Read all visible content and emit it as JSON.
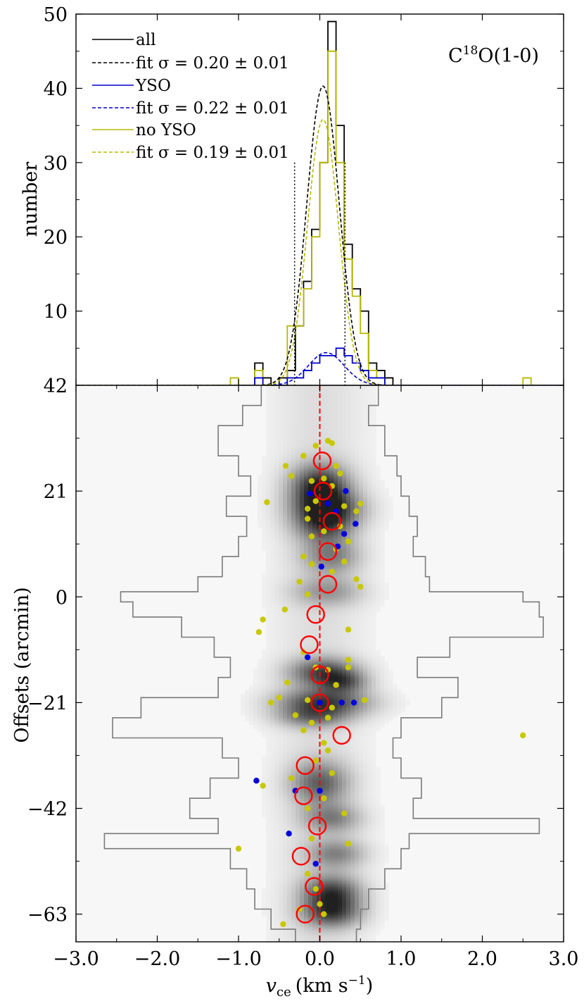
{
  "chart_data": [
    {
      "type": "line",
      "panel": "histogram",
      "annotation": "C18O(1-0)",
      "annotation_main": "C",
      "annotation_sup": "18",
      "annotation_rest": "O(1-0)",
      "ylabel": "number",
      "xlim": [
        -3.0,
        3.0
      ],
      "ylim": [
        0,
        50
      ],
      "yticks": [
        10,
        20,
        30,
        40,
        50
      ],
      "ytick_labels": [
        "10",
        "20",
        "30",
        "40",
        "50"
      ],
      "vertical_markers": [
        -0.31,
        0.31
      ],
      "legend_position": "upper left",
      "colors": {
        "all": "#000000",
        "yso": "#0000cc",
        "noyso": "#b8b800"
      },
      "legend": [
        {
          "label": "all",
          "style": "solid",
          "color": "#000000"
        },
        {
          "label": "fit σ = 0.20 ± 0.01",
          "style": "dashed",
          "color": "#000000"
        },
        {
          "label": "YSO",
          "style": "solid",
          "color": "#0000cc"
        },
        {
          "label": "fit σ = 0.22 ± 0.01",
          "style": "dashed",
          "color": "#0000cc"
        },
        {
          "label": "no YSO",
          "style": "solid",
          "color": "#b8b800"
        },
        {
          "label": "fit σ = 0.19 ± 0.01",
          "style": "dashed",
          "color": "#b8b800"
        }
      ],
      "bin_width": 0.1,
      "series": [
        {
          "name": "all",
          "type": "step",
          "color": "#000000",
          "bin_start": -0.8,
          "values": [
            3,
            1,
            0,
            1,
            2,
            8,
            14,
            21,
            30,
            49,
            35,
            19,
            13,
            10,
            3,
            2,
            1
          ]
        },
        {
          "name": "YSO",
          "type": "step",
          "color": "#0000cc",
          "bin_start": -0.8,
          "values": [
            1,
            0,
            0,
            0,
            1,
            1,
            2,
            3,
            4,
            4,
            5,
            4,
            3,
            2,
            1,
            1,
            0
          ]
        },
        {
          "name": "no YSO",
          "type": "step",
          "color": "#b8b800",
          "bin_start": -1.1,
          "values": [
            1,
            0,
            0,
            2,
            0,
            0,
            0,
            8,
            8,
            13,
            20,
            30,
            45,
            30,
            17,
            12,
            7,
            2,
            1,
            0,
            0,
            0,
            0,
            0,
            0,
            0,
            0,
            0,
            0,
            0,
            0,
            0,
            0,
            0,
            0,
            0,
            1
          ]
        },
        {
          "name": "fit σ = 0.20 ± 0.01",
          "type": "gaussian",
          "color": "#000000",
          "amplitude": 40.3,
          "mu": 0.04,
          "sigma": 0.2
        },
        {
          "name": "fit σ = 0.22 ± 0.01",
          "type": "gaussian",
          "color": "#0000cc",
          "amplitude": 4.4,
          "mu": 0.08,
          "sigma": 0.22
        },
        {
          "name": "fit σ = 0.19 ± 0.01",
          "type": "gaussian",
          "color": "#b8b800",
          "amplitude": 35.8,
          "mu": 0.04,
          "sigma": 0.19
        }
      ]
    },
    {
      "type": "heatmap",
      "panel": "position-velocity",
      "xlabel_main": "v",
      "xlabel_sub": "ce",
      "xlabel_unit": "(km s",
      "xlabel_unit_sup": "−1",
      "xlabel_close": ")",
      "ylabel": "Offsets (arcmin)",
      "xlim": [
        -3.0,
        3.0
      ],
      "ylim": [
        -68.5,
        42
      ],
      "xticks": [
        -3.0,
        -2.0,
        -1.0,
        0.0,
        1.0,
        2.0,
        3.0
      ],
      "xtick_labels": [
        "−3.0",
        "−2.0",
        "−1.0",
        "0.0",
        "1.0",
        "2.0",
        "3.0"
      ],
      "yticks": [
        42,
        21,
        0,
        -21,
        -42,
        -63
      ],
      "ytick_labels": [
        "42",
        "21",
        "0",
        "−21",
        "−42",
        "−63"
      ],
      "reference_line_x": 0.0,
      "colors": {
        "circle": "#ff0000",
        "yso": "#0000dd",
        "noyso": "#c8c800",
        "contour": "#7a7a7a",
        "refline": "#ff0000"
      },
      "intensity_peaks": [
        {
          "offset": 22,
          "width": 3.0,
          "v": 0.0,
          "dv": 0.25,
          "peak": 0.85
        },
        {
          "offset": 17.5,
          "width": 2.5,
          "v": 0.1,
          "dv": 0.3,
          "peak": 0.7
        },
        {
          "offset": 14,
          "width": 2.5,
          "v": 0.05,
          "dv": 0.25,
          "peak": 0.55
        },
        {
          "offset": 8,
          "width": 2.5,
          "v": 0.15,
          "dv": 0.25,
          "peak": 0.45
        },
        {
          "offset": 1,
          "width": 2.0,
          "v": 0.1,
          "dv": 0.3,
          "peak": 0.35
        },
        {
          "offset": -15,
          "width": 2.0,
          "v": 0.05,
          "dv": 0.3,
          "peak": 0.7
        },
        {
          "offset": -17,
          "width": 1.5,
          "v": 0.3,
          "dv": 0.2,
          "peak": 0.45
        },
        {
          "offset": -21,
          "width": 2.0,
          "v": 0.05,
          "dv": 0.4,
          "peak": 0.75
        },
        {
          "offset": -24,
          "width": 1.5,
          "v": -0.1,
          "dv": 0.3,
          "peak": 0.4
        },
        {
          "offset": -37,
          "width": 3.0,
          "v": 0.0,
          "dv": 0.25,
          "peak": 0.6
        },
        {
          "offset": -44,
          "width": 2.0,
          "v": 0.15,
          "dv": 0.25,
          "peak": 0.45
        },
        {
          "offset": -51,
          "width": 2.0,
          "v": 0.2,
          "dv": 0.25,
          "peak": 0.45
        },
        {
          "offset": -59,
          "width": 2.5,
          "v": 0.15,
          "dv": 0.25,
          "peak": 0.8
        },
        {
          "offset": -63,
          "width": 2.0,
          "v": 0.15,
          "dv": 0.25,
          "peak": 0.6
        }
      ],
      "envelope": [
        {
          "offset": 42,
          "left": -0.72,
          "right": 0.72
        },
        {
          "offset": 38,
          "left": -0.95,
          "right": 0.6
        },
        {
          "offset": 34,
          "left": -1.25,
          "right": 0.8
        },
        {
          "offset": 28,
          "left": -1.0,
          "right": 0.95
        },
        {
          "offset": 24,
          "left": -0.85,
          "right": 1.0
        },
        {
          "offset": 20,
          "left": -1.15,
          "right": 1.1
        },
        {
          "offset": 16,
          "left": -0.9,
          "right": 1.2
        },
        {
          "offset": 12,
          "left": -1.0,
          "right": 1.15
        },
        {
          "offset": 8,
          "left": -1.2,
          "right": 1.3
        },
        {
          "offset": 4,
          "left": -1.5,
          "right": 1.35
        },
        {
          "offset": 1,
          "left": -2.45,
          "right": 2.5
        },
        {
          "offset": -1,
          "left": -2.3,
          "right": 2.7
        },
        {
          "offset": -4,
          "left": -1.7,
          "right": 2.75
        },
        {
          "offset": -8,
          "left": -1.3,
          "right": 1.6
        },
        {
          "offset": -12,
          "left": -1.1,
          "right": 1.2
        },
        {
          "offset": -16,
          "left": -1.25,
          "right": 1.7
        },
        {
          "offset": -20,
          "left": -2.2,
          "right": 1.5
        },
        {
          "offset": -24,
          "left": -2.55,
          "right": 1.0
        },
        {
          "offset": -28,
          "left": -1.2,
          "right": 0.9
        },
        {
          "offset": -32,
          "left": -1.0,
          "right": 1.0
        },
        {
          "offset": -36,
          "left": -1.35,
          "right": 1.25
        },
        {
          "offset": -40,
          "left": -1.6,
          "right": 1.15
        },
        {
          "offset": -44,
          "left": -1.25,
          "right": 2.7
        },
        {
          "offset": -47,
          "left": -2.65,
          "right": 1.1
        },
        {
          "offset": -50,
          "left": -1.1,
          "right": 1.0
        },
        {
          "offset": -54,
          "left": -0.9,
          "right": 0.8
        },
        {
          "offset": -58,
          "left": -0.8,
          "right": 0.6
        },
        {
          "offset": -62,
          "left": -0.6,
          "right": 0.5
        },
        {
          "offset": -66,
          "left": -0.3,
          "right": 0.45
        }
      ],
      "circles": [
        {
          "v": 0.03,
          "offset": 27
        },
        {
          "v": 0.04,
          "offset": 21
        },
        {
          "v": 0.15,
          "offset": 15
        },
        {
          "v": 0.1,
          "offset": 9
        },
        {
          "v": 0.1,
          "offset": 2.5
        },
        {
          "v": -0.05,
          "offset": -3.5
        },
        {
          "v": -0.13,
          "offset": -9.5
        },
        {
          "v": 0.0,
          "offset": -15.5
        },
        {
          "v": 0.0,
          "offset": -21
        },
        {
          "v": 0.27,
          "offset": -27.5
        },
        {
          "v": -0.18,
          "offset": -33.5
        },
        {
          "v": -0.2,
          "offset": -39.5
        },
        {
          "v": -0.03,
          "offset": -45.5
        },
        {
          "v": -0.23,
          "offset": -51.5
        },
        {
          "v": -0.07,
          "offset": -57.5
        },
        {
          "v": -0.18,
          "offset": -63
        }
      ],
      "yso_points": [
        {
          "v": 0.32,
          "offset": 21
        },
        {
          "v": -0.12,
          "offset": 20.5
        },
        {
          "v": 0.1,
          "offset": 18.5
        },
        {
          "v": 0.2,
          "offset": 17
        },
        {
          "v": 0.44,
          "offset": 14.5
        },
        {
          "v": 0.3,
          "offset": 12.5
        },
        {
          "v": 0.22,
          "offset": 10
        },
        {
          "v": 0.02,
          "offset": 6
        },
        {
          "v": -0.15,
          "offset": -12
        },
        {
          "v": 0.0,
          "offset": -21
        },
        {
          "v": 0.27,
          "offset": -21
        },
        {
          "v": 0.42,
          "offset": -21
        },
        {
          "v": -0.78,
          "offset": -36.5
        },
        {
          "v": -0.3,
          "offset": -38.5
        },
        {
          "v": 0.0,
          "offset": -38.5
        },
        {
          "v": -0.38,
          "offset": -47
        },
        {
          "v": -0.05,
          "offset": -53
        }
      ],
      "noyso_points": [
        {
          "v": -0.05,
          "offset": 30
        },
        {
          "v": 0.1,
          "offset": 31
        },
        {
          "v": 0.15,
          "offset": 30.5
        },
        {
          "v": -0.2,
          "offset": 28
        },
        {
          "v": -0.42,
          "offset": 26
        },
        {
          "v": -0.35,
          "offset": 24
        },
        {
          "v": 0.2,
          "offset": 26
        },
        {
          "v": 0.25,
          "offset": 24.5
        },
        {
          "v": -0.1,
          "offset": 23
        },
        {
          "v": 0.05,
          "offset": 23.5
        },
        {
          "v": 0.15,
          "offset": 22
        },
        {
          "v": -0.05,
          "offset": 19
        },
        {
          "v": -0.15,
          "offset": 17.5
        },
        {
          "v": 0.3,
          "offset": 18
        },
        {
          "v": 0.5,
          "offset": 18.5
        },
        {
          "v": -0.65,
          "offset": 18.8
        },
        {
          "v": 0.45,
          "offset": 17
        },
        {
          "v": -0.15,
          "offset": 15.5
        },
        {
          "v": 0.25,
          "offset": 14
        },
        {
          "v": 0.05,
          "offset": 13
        },
        {
          "v": -0.1,
          "offset": 12
        },
        {
          "v": 0.35,
          "offset": 11
        },
        {
          "v": 0.2,
          "offset": 9.5
        },
        {
          "v": -0.2,
          "offset": 8
        },
        {
          "v": -0.1,
          "offset": 6.5
        },
        {
          "v": 0.3,
          "offset": 7
        },
        {
          "v": 0.15,
          "offset": 5
        },
        {
          "v": -0.25,
          "offset": 3
        },
        {
          "v": 0.5,
          "offset": 2
        },
        {
          "v": -0.15,
          "offset": 0.5
        },
        {
          "v": 0.45,
          "offset": 3.5
        },
        {
          "v": -0.43,
          "offset": -2.5
        },
        {
          "v": -0.7,
          "offset": -4.5
        },
        {
          "v": -0.75,
          "offset": -7
        },
        {
          "v": 0.35,
          "offset": -6.5
        },
        {
          "v": -0.2,
          "offset": -11
        },
        {
          "v": -0.05,
          "offset": -14
        },
        {
          "v": 0.1,
          "offset": -14.5
        },
        {
          "v": 0.35,
          "offset": -12.5
        },
        {
          "v": -0.4,
          "offset": -17
        },
        {
          "v": 0.2,
          "offset": -17.5
        },
        {
          "v": 0.35,
          "offset": -14
        },
        {
          "v": -0.6,
          "offset": -21
        },
        {
          "v": -0.5,
          "offset": -20
        },
        {
          "v": -0.15,
          "offset": -20.5
        },
        {
          "v": 0.15,
          "offset": -22
        },
        {
          "v": 0.55,
          "offset": -20.5
        },
        {
          "v": -0.3,
          "offset": -23.5
        },
        {
          "v": -0.1,
          "offset": -25
        },
        {
          "v": 0.1,
          "offset": -24
        },
        {
          "v": -0.2,
          "offset": -26.5
        },
        {
          "v": 0.05,
          "offset": -29
        },
        {
          "v": 0.1,
          "offset": -30.5
        },
        {
          "v": -0.05,
          "offset": -32.5
        },
        {
          "v": 0.15,
          "offset": -35
        },
        {
          "v": -0.7,
          "offset": -37.5
        },
        {
          "v": -0.35,
          "offset": -36
        },
        {
          "v": 0.05,
          "offset": -40
        },
        {
          "v": 0.3,
          "offset": -43
        },
        {
          "v": -0.15,
          "offset": -42
        },
        {
          "v": -0.1,
          "offset": -48
        },
        {
          "v": 0.35,
          "offset": -49
        },
        {
          "v": -1.0,
          "offset": -50
        },
        {
          "v": -0.15,
          "offset": -55
        },
        {
          "v": -0.05,
          "offset": -58
        },
        {
          "v": 0.0,
          "offset": -61
        },
        {
          "v": -0.25,
          "offset": -62
        },
        {
          "v": 0.05,
          "offset": -63
        },
        {
          "v": -0.45,
          "offset": -65
        },
        {
          "v": 2.5,
          "offset": -27.5
        }
      ]
    }
  ]
}
